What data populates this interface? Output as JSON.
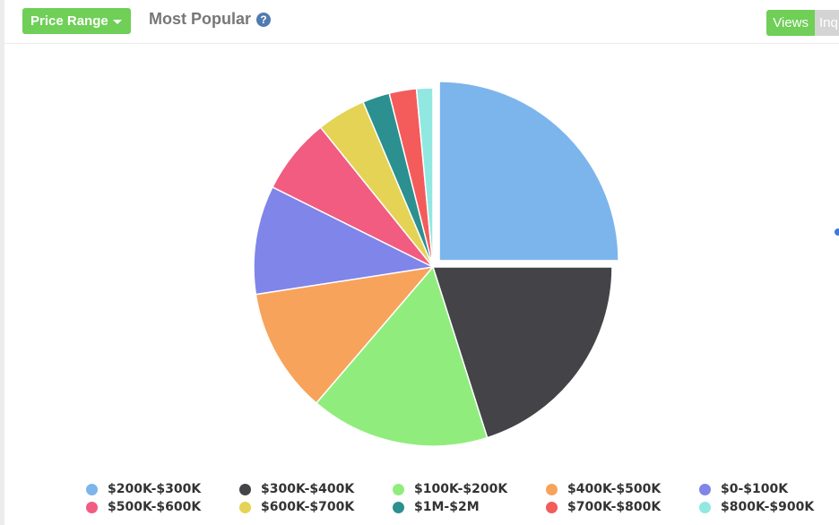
{
  "toolbar": {
    "range_label": "Price Range",
    "title": "Most Popular",
    "help_glyph": "?",
    "toggle_views": "Views",
    "toggle_other": "Inq"
  },
  "colors": {
    "accent": "#6fcf57",
    "help": "#4f7bb0"
  },
  "icons": [
    "caret-down-icon",
    "help-circle-icon"
  ],
  "chart_data": {
    "type": "pie",
    "title": "",
    "legend_position": "bottom",
    "exploded_slice": "$200K-$300K",
    "slices": [
      {
        "label": "$200K-$300K",
        "value": 25.5,
        "color": "#7cb5ec"
      },
      {
        "label": "$300K-$400K",
        "value": 20.5,
        "color": "#434348"
      },
      {
        "label": "$100K-$200K",
        "value": 16.5,
        "color": "#90ed7d"
      },
      {
        "label": "$400K-$500K",
        "value": 11.5,
        "color": "#f7a35c"
      },
      {
        "label": "$0-$100K",
        "value": 10.0,
        "color": "#8085e9"
      },
      {
        "label": "$500K-$600K",
        "value": 7.0,
        "color": "#f15c80"
      },
      {
        "label": "$600K-$700K",
        "value": 4.5,
        "color": "#e4d354"
      },
      {
        "label": "$1M-$2M",
        "value": 2.5,
        "color": "#2b908f"
      },
      {
        "label": "$700K-$800K",
        "value": 2.5,
        "color": "#f45b5b"
      },
      {
        "label": "$800K-$900K",
        "value": 1.5,
        "color": "#91e8e1"
      }
    ]
  }
}
